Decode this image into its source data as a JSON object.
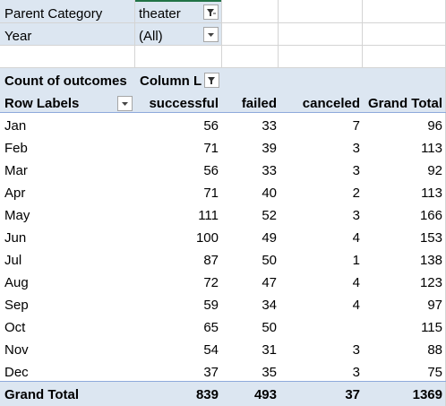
{
  "filters": [
    {
      "label": "Parent Category",
      "value": "theater",
      "icon": "filter-applied-icon"
    },
    {
      "label": "Year",
      "value": "(All)",
      "icon": "dropdown-arrow-icon"
    }
  ],
  "pivot": {
    "corner_label": "Count of outcomes",
    "column_labels_header": "Column L",
    "row_labels_header": "Row Labels",
    "columns": [
      "successful",
      "failed",
      "canceled",
      "Grand Total"
    ],
    "rows": [
      {
        "label": "Jan",
        "values": [
          "56",
          "33",
          "7",
          "96"
        ]
      },
      {
        "label": "Feb",
        "values": [
          "71",
          "39",
          "3",
          "113"
        ]
      },
      {
        "label": "Mar",
        "values": [
          "56",
          "33",
          "3",
          "92"
        ]
      },
      {
        "label": "Apr",
        "values": [
          "71",
          "40",
          "2",
          "113"
        ]
      },
      {
        "label": "May",
        "values": [
          "111",
          "52",
          "3",
          "166"
        ]
      },
      {
        "label": "Jun",
        "values": [
          "100",
          "49",
          "4",
          "153"
        ]
      },
      {
        "label": "Jul",
        "values": [
          "87",
          "50",
          "1",
          "138"
        ]
      },
      {
        "label": "Aug",
        "values": [
          "72",
          "47",
          "4",
          "123"
        ]
      },
      {
        "label": "Sep",
        "values": [
          "59",
          "34",
          "4",
          "97"
        ]
      },
      {
        "label": "Oct",
        "values": [
          "65",
          "50",
          "",
          "115"
        ]
      },
      {
        "label": "Nov",
        "values": [
          "54",
          "31",
          "3",
          "88"
        ]
      },
      {
        "label": "Dec",
        "values": [
          "37",
          "35",
          "3",
          "75"
        ]
      }
    ],
    "grand_total": {
      "label": "Grand Total",
      "values": [
        "839",
        "493",
        "37",
        "1369"
      ]
    }
  },
  "colors": {
    "filter_bg": "#dce6f1",
    "header_line": "#8ea9db",
    "grid": "#d4d4d4",
    "accent": "#217346"
  }
}
